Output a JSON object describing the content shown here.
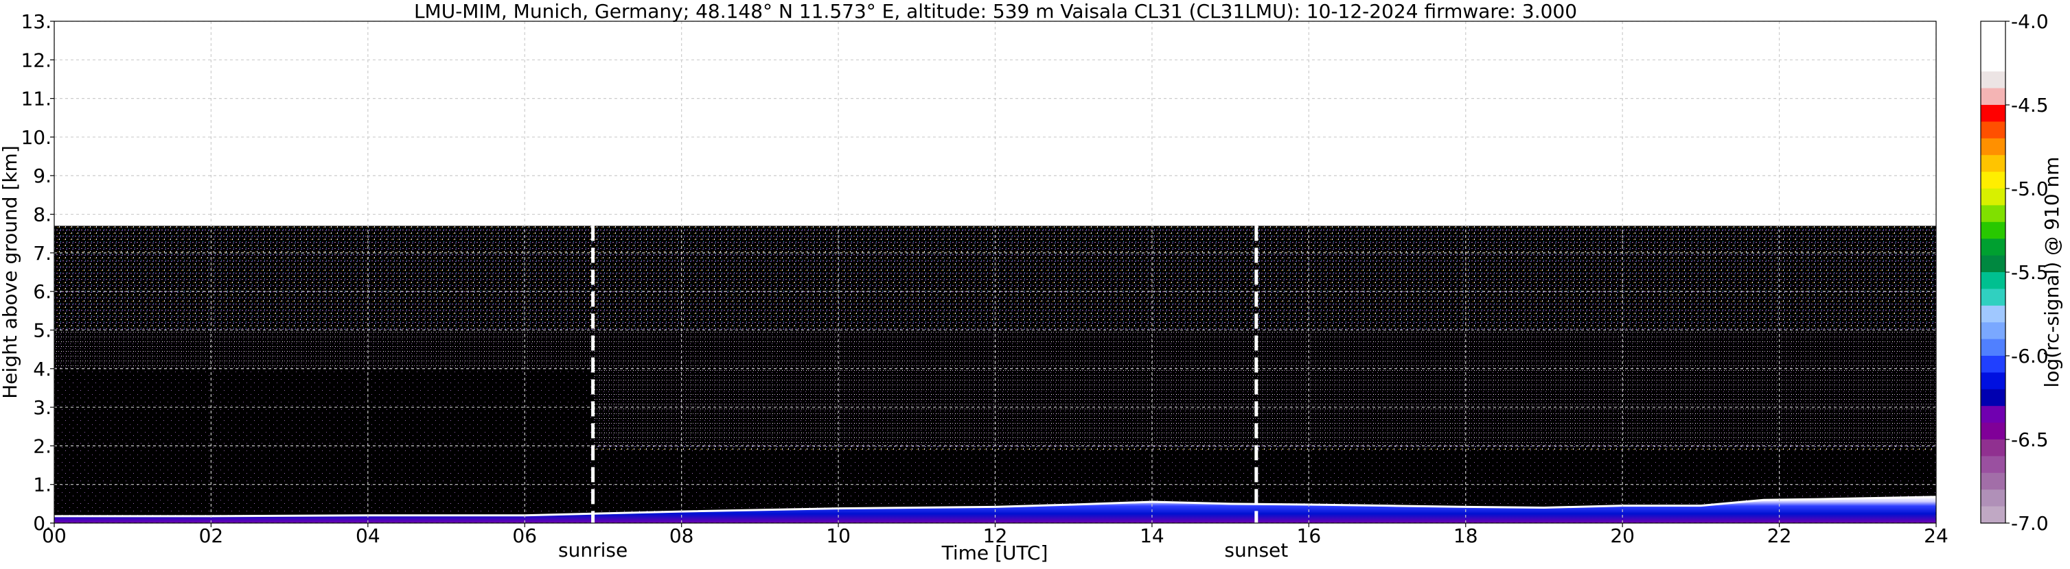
{
  "chart_data": {
    "type": "heatmap",
    "title": "LMU-MIM, Munich, Germany; 48.148° N 11.573° E, altitude: 539 m    Vaisala CL31 (CL31LMU): 10-12-2024    firmware: 3.000",
    "xlabel": "Time [UTC]",
    "ylabel": "Height above ground [km]",
    "xlim": [
      0,
      24
    ],
    "ylim": [
      0,
      13
    ],
    "x_ticks": [
      "00",
      "02",
      "04",
      "06",
      "08",
      "10",
      "12",
      "14",
      "16",
      "18",
      "20",
      "22",
      "24"
    ],
    "y_ticks": [
      "0.",
      "1.",
      "2.",
      "3.",
      "4.",
      "5.",
      "6.",
      "7.",
      "8.",
      "9.",
      "10.",
      "11.",
      "12.",
      "13."
    ],
    "grid": true,
    "sunrise": {
      "label": "sunrise",
      "time": 6.87
    },
    "sunset": {
      "label": "sunset",
      "time": 15.33
    },
    "data_top_km": 7.7,
    "boundary_layer_km": [
      [
        0,
        0.18
      ],
      [
        2,
        0.18
      ],
      [
        4,
        0.2
      ],
      [
        6,
        0.2
      ],
      [
        7,
        0.25
      ],
      [
        8,
        0.3
      ],
      [
        10,
        0.38
      ],
      [
        12,
        0.42
      ],
      [
        13,
        0.48
      ],
      [
        14,
        0.55
      ],
      [
        15,
        0.5
      ],
      [
        16,
        0.48
      ],
      [
        17,
        0.45
      ],
      [
        18,
        0.42
      ],
      [
        19,
        0.4
      ],
      [
        20,
        0.45
      ],
      [
        21,
        0.45
      ],
      [
        21.8,
        0.6
      ],
      [
        22.5,
        0.62
      ],
      [
        24,
        0.68
      ]
    ],
    "colorbar": {
      "label": "log(rc-signal) @ 910 nm",
      "min": -7.0,
      "max": -4.0,
      "ticks": [
        "-4.0",
        "-4.5",
        "-5.0",
        "-5.5",
        "-6.0",
        "-6.5",
        "-7.0"
      ],
      "colors": [
        "#ffffff",
        "#ffffff",
        "#ffffff",
        "#ece4e4",
        "#f4b4b4",
        "#ff0000",
        "#ff5000",
        "#ff9000",
        "#ffc400",
        "#ffee00",
        "#d8f000",
        "#80e000",
        "#28c800",
        "#00a030",
        "#008840",
        "#00c090",
        "#30d0c0",
        "#a0c8ff",
        "#7aa8ff",
        "#5080ff",
        "#2040ff",
        "#0010e0",
        "#0000b0",
        "#7000b0",
        "#800098",
        "#903090",
        "#9a50a0",
        "#a26ea8",
        "#b090b8",
        "#c0a8c4"
      ]
    }
  }
}
